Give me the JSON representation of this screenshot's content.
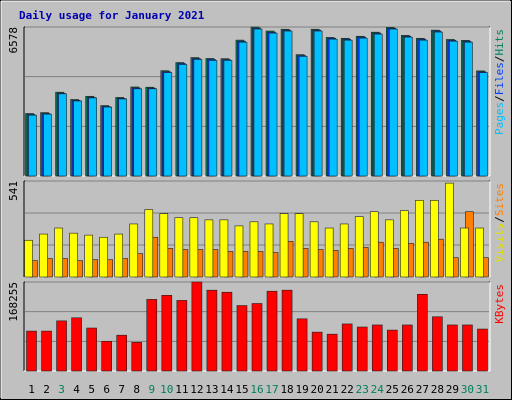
{
  "title": "Daily usage for January 2021",
  "legend_separator": "/",
  "chart_data": [
    {
      "type": "bar",
      "series": [
        {
          "name": "Hits",
          "color": "#00805c",
          "values": [
            2760,
            2800,
            3700,
            3380,
            3520,
            3110,
            3470,
            3930,
            3920,
            4650,
            5010,
            5230,
            5190,
            5180,
            6000,
            6578,
            6400,
            6480,
            5360,
            6480,
            6120,
            6080,
            6170,
            6350,
            6560,
            6210,
            6080,
            6440,
            6030,
            5990,
            4640
          ]
        },
        {
          "name": "Files",
          "color": "#0040ff",
          "values": [
            2720,
            2760,
            3660,
            3340,
            3480,
            3070,
            3430,
            3890,
            3880,
            4610,
            4970,
            5190,
            5150,
            5140,
            5950,
            6530,
            6350,
            6440,
            5320,
            6440,
            6080,
            6040,
            6130,
            6310,
            6520,
            6170,
            6040,
            6400,
            5990,
            5950,
            4600
          ]
        },
        {
          "name": "Pages",
          "color": "#00c0ff",
          "values": [
            2685,
            2730,
            3625,
            3311,
            3446,
            3043,
            3401,
            3848,
            3848,
            4564,
            4922,
            5146,
            5101,
            5101,
            5907,
            6488,
            6309,
            6399,
            5280,
            6399,
            6041,
            5996,
            6086,
            6265,
            6488,
            6130,
            5996,
            6354,
            5951,
            5907,
            4564
          ]
        }
      ],
      "ylim": [
        0,
        6578
      ],
      "yticks": [
        6578
      ]
    },
    {
      "type": "bar",
      "series": [
        {
          "name": "Sites",
          "color": "#ff8000",
          "values": [
            92,
            104,
            104,
            92,
            98,
            98,
            104,
            132,
            224,
            161,
            155,
            155,
            155,
            144,
            144,
            144,
            138,
            201,
            161,
            155,
            150,
            161,
            167,
            196,
            161,
            190,
            196,
            213,
            109,
            368,
            109
          ]
        },
        {
          "name": "Visits",
          "color": "#ffff00",
          "values": [
            207,
            242,
            276,
            247,
            236,
            224,
            242,
            299,
            380,
            357,
            334,
            334,
            322,
            322,
            288,
            311,
            299,
            357,
            357,
            311,
            276,
            299,
            340,
            368,
            322,
            374,
            432,
            432,
            529,
            276,
            276
          ]
        }
      ],
      "ylim": [
        0,
        541
      ],
      "yticks": [
        541
      ]
    },
    {
      "type": "bar",
      "categories": [
        "1",
        "2",
        "3",
        "4",
        "5",
        "6",
        "7",
        "8",
        "9",
        "10",
        "11",
        "12",
        "13",
        "14",
        "15",
        "16",
        "17",
        "18",
        "19",
        "20",
        "21",
        "22",
        "23",
        "24",
        "25",
        "26",
        "27",
        "28",
        "29",
        "30",
        "31"
      ],
      "category_colors": [
        "#000000",
        "#000000",
        "#00805c",
        "#000000",
        "#000000",
        "#000000",
        "#000000",
        "#000000",
        "#00805c",
        "#00805c",
        "#000000",
        "#000000",
        "#000000",
        "#000000",
        "#000000",
        "#00805c",
        "#00805c",
        "#000000",
        "#000000",
        "#000000",
        "#000000",
        "#000000",
        "#00805c",
        "#00805c",
        "#000000",
        "#000000",
        "#000000",
        "#000000",
        "#000000",
        "#00805c",
        "#00805c"
      ],
      "series": [
        {
          "name": "KBytes",
          "color": "#ff0000",
          "values": [
            75423,
            75423,
            94763,
            100565,
            81226,
            56085,
            67688,
            54150,
            135377,
            143112,
            133443,
            168255,
            152784,
            148914,
            123774,
            127641,
            150849,
            152784,
            98632,
            73489,
            69623,
            88961,
            83160,
            87027,
            77358,
            87027,
            145047,
            102500,
            87027,
            87027,
            79292
          ]
        }
      ],
      "ylim": [
        0,
        168255
      ],
      "yticks": [
        168255
      ]
    }
  ]
}
